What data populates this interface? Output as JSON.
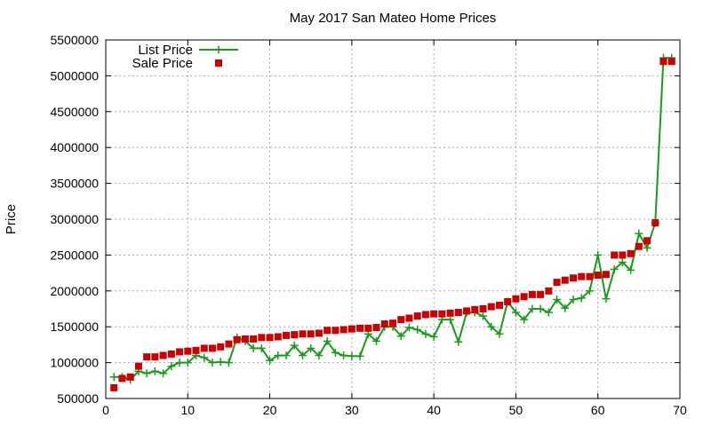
{
  "chart_data": {
    "type": "line",
    "title": "May 2017 San Mateo Home Prices",
    "xlabel": "",
    "ylabel": "Price",
    "xlim": [
      0,
      70
    ],
    "ylim": [
      500000,
      5500000
    ],
    "x_ticks": [
      0,
      10,
      20,
      30,
      40,
      50,
      60,
      70
    ],
    "y_ticks": [
      500000,
      1000000,
      1500000,
      2000000,
      2500000,
      3000000,
      3500000,
      4000000,
      4500000,
      5000000,
      5500000
    ],
    "grid": true,
    "legend_position": "top-left",
    "series": [
      {
        "name": "List Price",
        "style": "line-with-plus-markers",
        "color": "#1a9a1a",
        "x": [
          1,
          2,
          3,
          4,
          5,
          6,
          7,
          8,
          9,
          10,
          11,
          12,
          13,
          14,
          15,
          16,
          17,
          18,
          19,
          20,
          21,
          22,
          23,
          24,
          25,
          26,
          27,
          28,
          29,
          30,
          31,
          32,
          33,
          34,
          35,
          36,
          37,
          38,
          39,
          40,
          41,
          42,
          43,
          44,
          45,
          46,
          47,
          48,
          49,
          50,
          51,
          52,
          53,
          54,
          55,
          56,
          57,
          58,
          59,
          60,
          61,
          62,
          63,
          64,
          65,
          66,
          67,
          68,
          69
        ],
        "values": [
          800000,
          800000,
          760000,
          880000,
          850000,
          880000,
          850000,
          950000,
          1000000,
          1000000,
          1100000,
          1070000,
          1000000,
          1010000,
          1000000,
          1350000,
          1300000,
          1200000,
          1200000,
          1030000,
          1100000,
          1100000,
          1240000,
          1100000,
          1200000,
          1100000,
          1300000,
          1140000,
          1100000,
          1090000,
          1090000,
          1400000,
          1300000,
          1500000,
          1500000,
          1370000,
          1490000,
          1460000,
          1400000,
          1360000,
          1600000,
          1600000,
          1290000,
          1700000,
          1700000,
          1650000,
          1500000,
          1400000,
          1850000,
          1700000,
          1600000,
          1750000,
          1750000,
          1700000,
          1880000,
          1760000,
          1880000,
          1900000,
          2000000,
          2500000,
          1890000,
          2300000,
          2400000,
          2290000,
          2800000,
          2600000,
          2950000,
          5250000,
          5250000
        ]
      },
      {
        "name": "Sale Price",
        "style": "square-markers",
        "color": "#cc0000",
        "x": [
          1,
          2,
          3,
          4,
          5,
          6,
          7,
          8,
          9,
          10,
          11,
          12,
          13,
          14,
          15,
          16,
          17,
          18,
          19,
          20,
          21,
          22,
          23,
          24,
          25,
          26,
          27,
          28,
          29,
          30,
          31,
          32,
          33,
          34,
          35,
          36,
          37,
          38,
          39,
          40,
          41,
          42,
          43,
          44,
          45,
          46,
          47,
          48,
          49,
          50,
          51,
          52,
          53,
          54,
          55,
          56,
          57,
          58,
          59,
          60,
          61,
          62,
          63,
          64,
          65,
          66,
          67,
          68,
          69
        ],
        "values": [
          650000,
          780000,
          800000,
          950000,
          1080000,
          1080000,
          1100000,
          1120000,
          1150000,
          1160000,
          1170000,
          1200000,
          1200000,
          1220000,
          1260000,
          1320000,
          1330000,
          1330000,
          1350000,
          1350000,
          1360000,
          1380000,
          1390000,
          1400000,
          1400000,
          1410000,
          1450000,
          1450000,
          1460000,
          1470000,
          1480000,
          1480000,
          1490000,
          1540000,
          1550000,
          1600000,
          1620000,
          1650000,
          1670000,
          1680000,
          1680000,
          1690000,
          1700000,
          1720000,
          1740000,
          1750000,
          1780000,
          1800000,
          1850000,
          1890000,
          1920000,
          1950000,
          1950000,
          2000000,
          2120000,
          2150000,
          2180000,
          2200000,
          2200000,
          2220000,
          2230000,
          2500000,
          2500000,
          2520000,
          2620000,
          2700000,
          2950000,
          5200000,
          5200000
        ]
      }
    ]
  }
}
